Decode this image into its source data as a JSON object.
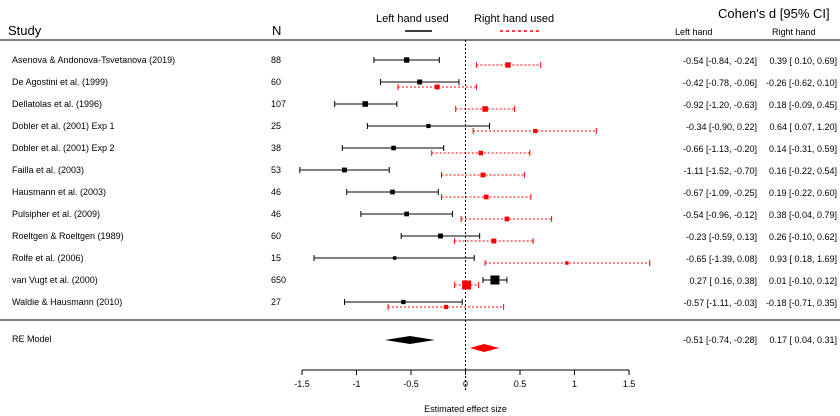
{
  "headers": {
    "study": "Study",
    "n": "N",
    "effect_title": "Cohen's d [95% CI]",
    "left_col": "Left hand",
    "right_col": "Right hand"
  },
  "legend": {
    "left": "Left hand used",
    "right": "Right hand used",
    "left_color": "#000000",
    "right_color": "#ff0000"
  },
  "chart_data": {
    "type": "forest",
    "xlabel": "Estimated effect size",
    "xlim": [
      -1.5,
      1.5
    ],
    "xticks": [
      -1.5,
      -1,
      -0.5,
      0,
      0.5,
      1,
      1.5
    ],
    "xtick_labels": [
      "-1.5",
      "-1",
      "-0.5",
      "0",
      "0.5",
      "1",
      "1.5"
    ],
    "reference_line": 0,
    "series": [
      {
        "name": "Left hand used",
        "color": "#000000",
        "line": "solid"
      },
      {
        "name": "Right hand used",
        "color": "#ff0000",
        "line": "dotted"
      }
    ],
    "studies": [
      {
        "study": "Asenova & Andonova-Tsvetanova (2019)",
        "n": "88",
        "left": {
          "d": -0.54,
          "lo": -0.84,
          "hi": -0.24,
          "label": "-0.54 [-0.84, -0.24]"
        },
        "right": {
          "d": 0.39,
          "lo": 0.1,
          "hi": 0.69,
          "label": "0.39 [ 0.10, 0.69]"
        }
      },
      {
        "study": "De Agostini et al. (1999)",
        "n": "60",
        "left": {
          "d": -0.42,
          "lo": -0.78,
          "hi": -0.06,
          "label": "-0.42 [-0.78, -0.06]"
        },
        "right": {
          "d": -0.26,
          "lo": -0.62,
          "hi": 0.1,
          "label": "-0.26 [-0.62, 0.10]"
        }
      },
      {
        "study": "Dellatolas et al. (1996)",
        "n": "107",
        "left": {
          "d": -0.92,
          "lo": -1.2,
          "hi": -0.63,
          "label": "-0.92 [-1.20, -0.63]"
        },
        "right": {
          "d": 0.18,
          "lo": -0.09,
          "hi": 0.45,
          "label": "0.18 [-0.09, 0.45]"
        }
      },
      {
        "study": "Dobler et al. (2001) Exp 1",
        "n": "25",
        "left": {
          "d": -0.34,
          "lo": -0.9,
          "hi": 0.22,
          "label": "-0.34 [-0.90,  0.22]"
        },
        "right": {
          "d": 0.64,
          "lo": 0.07,
          "hi": 1.2,
          "label": "0.64 [ 0.07, 1.20]"
        }
      },
      {
        "study": "Dobler et al. (2001) Exp 2",
        "n": "38",
        "left": {
          "d": -0.66,
          "lo": -1.13,
          "hi": -0.2,
          "label": "-0.66 [-1.13, -0.20]"
        },
        "right": {
          "d": 0.14,
          "lo": -0.31,
          "hi": 0.59,
          "label": "0.14 [-0.31, 0.59]"
        }
      },
      {
        "study": "Failla et al. (2003)",
        "n": "53",
        "left": {
          "d": -1.11,
          "lo": -1.52,
          "hi": -0.7,
          "label": "-1.11 [-1.52, -0.70]"
        },
        "right": {
          "d": 0.16,
          "lo": -0.22,
          "hi": 0.54,
          "label": "0.16 [-0.22, 0.54]"
        }
      },
      {
        "study": "Hausmann et al. (2003)",
        "n": "46",
        "left": {
          "d": -0.67,
          "lo": -1.09,
          "hi": -0.25,
          "label": "-0.67 [-1.09, -0.25]"
        },
        "right": {
          "d": 0.19,
          "lo": -0.22,
          "hi": 0.6,
          "label": "0.19 [-0.22, 0.60]"
        }
      },
      {
        "study": "Pulsipher et al. (2009)",
        "n": "46",
        "left": {
          "d": -0.54,
          "lo": -0.96,
          "hi": -0.12,
          "label": "-0.54 [-0.96, -0.12]"
        },
        "right": {
          "d": 0.38,
          "lo": -0.04,
          "hi": 0.79,
          "label": "0.38 [-0.04, 0.79]"
        }
      },
      {
        "study": "Roeltgen & Roeltgen (1989)",
        "n": "60",
        "left": {
          "d": -0.23,
          "lo": -0.59,
          "hi": 0.13,
          "label": "-0.23 [-0.59,  0.13]"
        },
        "right": {
          "d": 0.26,
          "lo": -0.1,
          "hi": 0.62,
          "label": "0.26 [-0.10, 0.62]"
        }
      },
      {
        "study": "Rolfe et al. (2006)",
        "n": "15",
        "left": {
          "d": -0.65,
          "lo": -1.39,
          "hi": 0.08,
          "label": "-0.65 [-1.39,  0.08]"
        },
        "right": {
          "d": 0.93,
          "lo": 0.18,
          "hi": 1.69,
          "label": "0.93 [ 0.18, 1.69]"
        }
      },
      {
        "study": "van Vugt et al. (2000)",
        "n": "650",
        "left": {
          "d": 0.27,
          "lo": 0.16,
          "hi": 0.38,
          "label": "0.27 [ 0.16,  0.38]"
        },
        "right": {
          "d": 0.01,
          "lo": -0.1,
          "hi": 0.12,
          "label": "0.01 [-0.10, 0.12]"
        }
      },
      {
        "study": "Waldie & Hausmann (2010)",
        "n": "27",
        "left": {
          "d": -0.57,
          "lo": -1.11,
          "hi": -0.03,
          "label": "-0.57 [-1.11, -0.03]"
        },
        "right": {
          "d": -0.18,
          "lo": -0.71,
          "hi": 0.35,
          "label": "-0.18 [-0.71, 0.35]"
        }
      }
    ],
    "model": {
      "label": "RE Model",
      "left": {
        "d": -0.51,
        "lo": -0.74,
        "hi": -0.28,
        "label": "-0.51 [-0.74, -0.28]"
      },
      "right": {
        "d": 0.17,
        "lo": 0.04,
        "hi": 0.31,
        "label": "0.17 [ 0.04, 0.31]"
      }
    }
  }
}
